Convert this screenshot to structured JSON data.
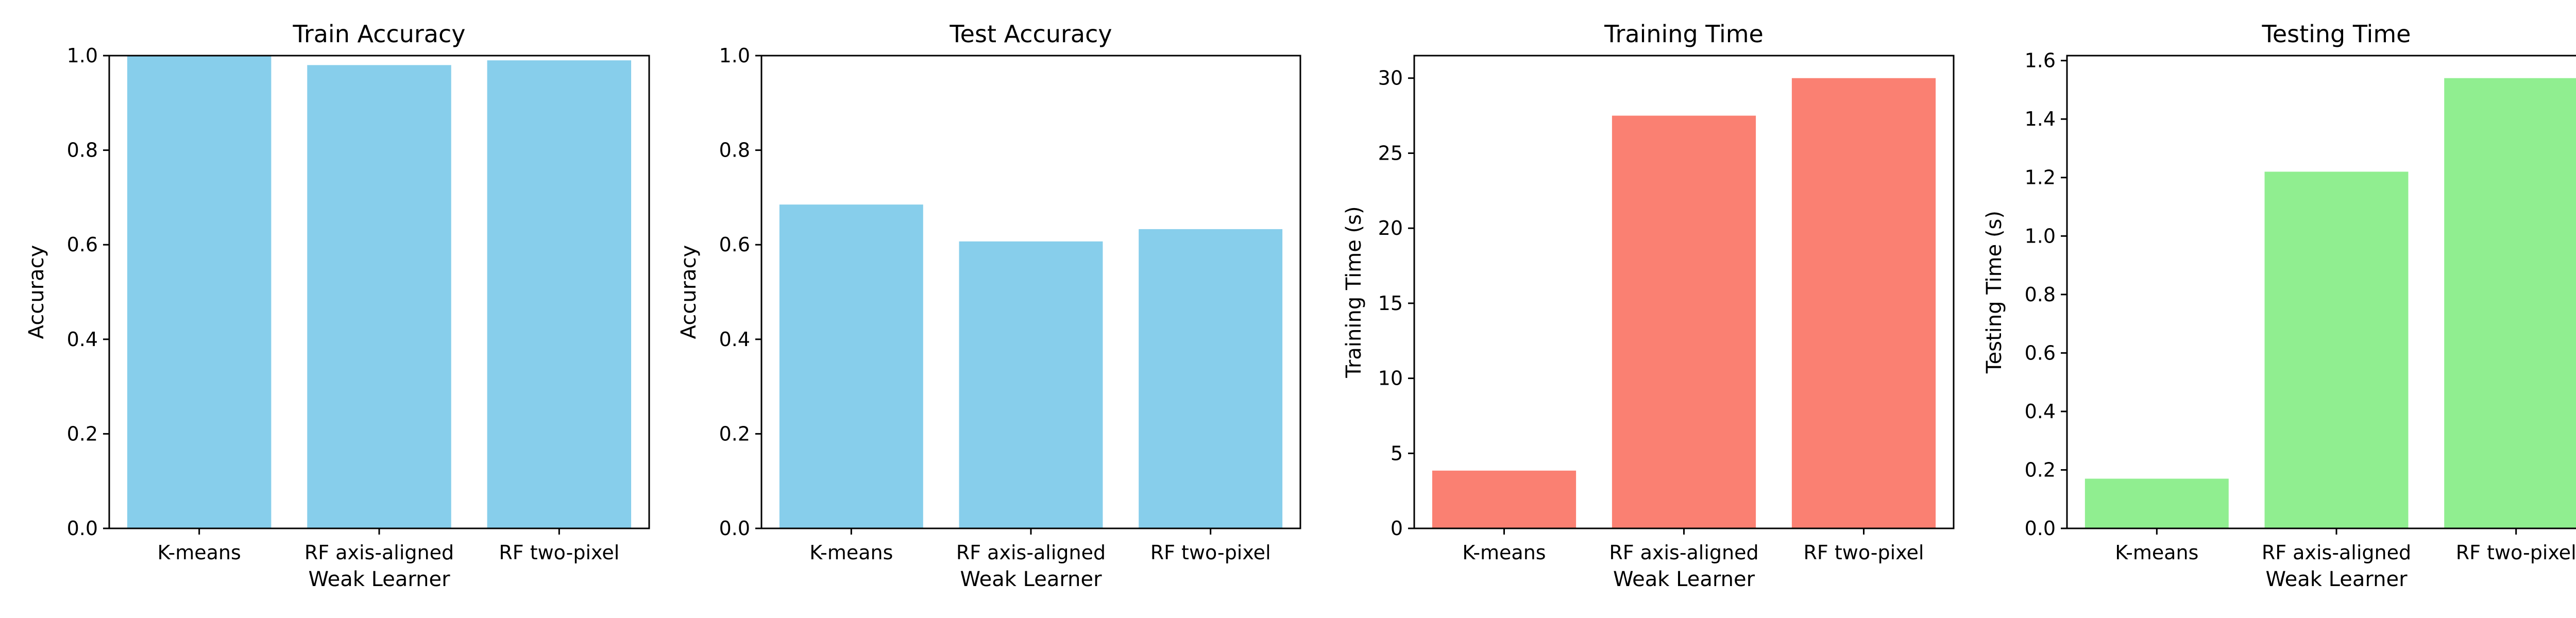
{
  "chart_data": [
    {
      "type": "bar",
      "title": "Train Accuracy",
      "xlabel": "Weak Learner",
      "ylabel": "Accuracy",
      "categories": [
        "K-means",
        "RF axis-aligned",
        "RF two-pixel"
      ],
      "values": [
        1.0,
        0.98,
        0.99
      ],
      "ylim": [
        0,
        1.0
      ],
      "yticks": [
        0.0,
        0.2,
        0.4,
        0.6,
        0.8,
        1.0
      ],
      "ytick_labels": [
        "0.0",
        "0.2",
        "0.4",
        "0.6",
        "0.8",
        "1.0"
      ],
      "color": "#87CEEB",
      "grid": false
    },
    {
      "type": "bar",
      "title": "Test Accuracy",
      "xlabel": "Weak Learner",
      "ylabel": "Accuracy",
      "categories": [
        "K-means",
        "RF axis-aligned",
        "RF two-pixel"
      ],
      "values": [
        0.685,
        0.607,
        0.633
      ],
      "ylim": [
        0,
        1.0
      ],
      "yticks": [
        0.0,
        0.2,
        0.4,
        0.6,
        0.8,
        1.0
      ],
      "ytick_labels": [
        "0.0",
        "0.2",
        "0.4",
        "0.6",
        "0.8",
        "1.0"
      ],
      "color": "#87CEEB",
      "grid": false
    },
    {
      "type": "bar",
      "title": "Training Time",
      "xlabel": "Weak Learner",
      "ylabel": "Training Time (s)",
      "categories": [
        "K-means",
        "RF axis-aligned",
        "RF two-pixel"
      ],
      "values": [
        3.85,
        27.5,
        30.0
      ],
      "ylim": [
        0,
        31.5
      ],
      "yticks": [
        0,
        5,
        10,
        15,
        20,
        25,
        30
      ],
      "ytick_labels": [
        "0",
        "5",
        "10",
        "15",
        "20",
        "25",
        "30"
      ],
      "color": "#FA8072",
      "grid": false
    },
    {
      "type": "bar",
      "title": "Testing Time",
      "xlabel": "Weak Learner",
      "ylabel": "Testing Time (s)",
      "categories": [
        "K-means",
        "RF axis-aligned",
        "RF two-pixel"
      ],
      "values": [
        0.17,
        1.22,
        1.54
      ],
      "ylim": [
        0,
        1.617
      ],
      "yticks": [
        0.0,
        0.2,
        0.4,
        0.6,
        0.8,
        1.0,
        1.2,
        1.4,
        1.6
      ],
      "ytick_labels": [
        "0.0",
        "0.2",
        "0.4",
        "0.6",
        "0.8",
        "1.0",
        "1.2",
        "1.4",
        "1.6"
      ],
      "color": "#90EE90",
      "grid": false
    }
  ]
}
